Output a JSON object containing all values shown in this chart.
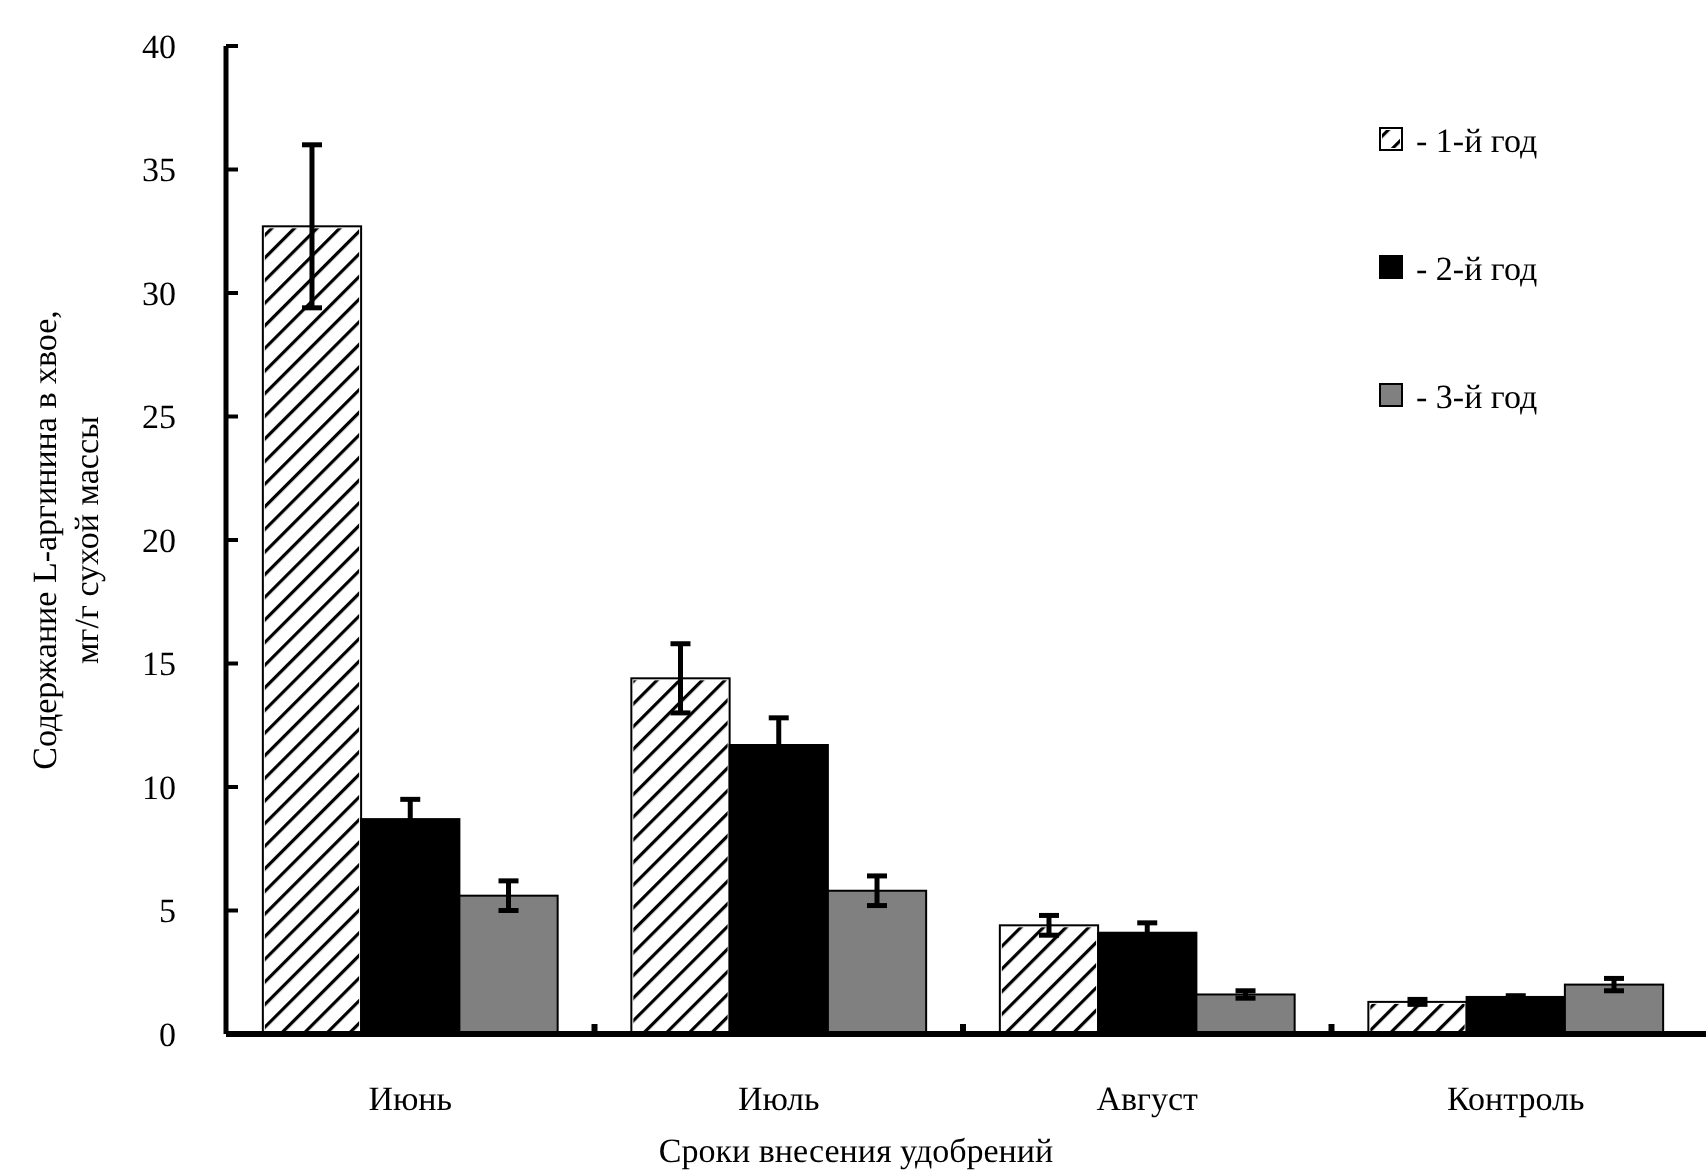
{
  "chart_data": {
    "type": "bar",
    "xlabel": "Сроки внесения удобрений",
    "ylabel": "Содержание L-аргинина в хвое,\nмг/г сухой массы",
    "categories": [
      "Июнь",
      "Июль",
      "Август",
      "Контроль"
    ],
    "series": [
      {
        "name": "- 1-й год",
        "color": "#ffffff",
        "values": [
          32.7,
          14.4,
          4.4,
          1.3
        ],
        "errors": [
          3.3,
          1.4,
          0.4,
          0.1
        ]
      },
      {
        "name": "- 2-й год",
        "color": "#000000",
        "values": [
          8.7,
          11.7,
          4.1,
          1.5
        ],
        "errors": [
          0.8,
          1.1,
          0.4,
          0.05
        ]
      },
      {
        "name": "- 3-й год",
        "color": "#808080",
        "values": [
          5.6,
          5.8,
          1.6,
          2.0
        ],
        "errors": [
          0.6,
          0.6,
          0.15,
          0.25
        ]
      }
    ],
    "ylim": [
      0,
      40
    ],
    "yticks": [
      0,
      5,
      10,
      15,
      20,
      25,
      30,
      35,
      40
    ],
    "legend": "top right",
    "grid": false
  }
}
